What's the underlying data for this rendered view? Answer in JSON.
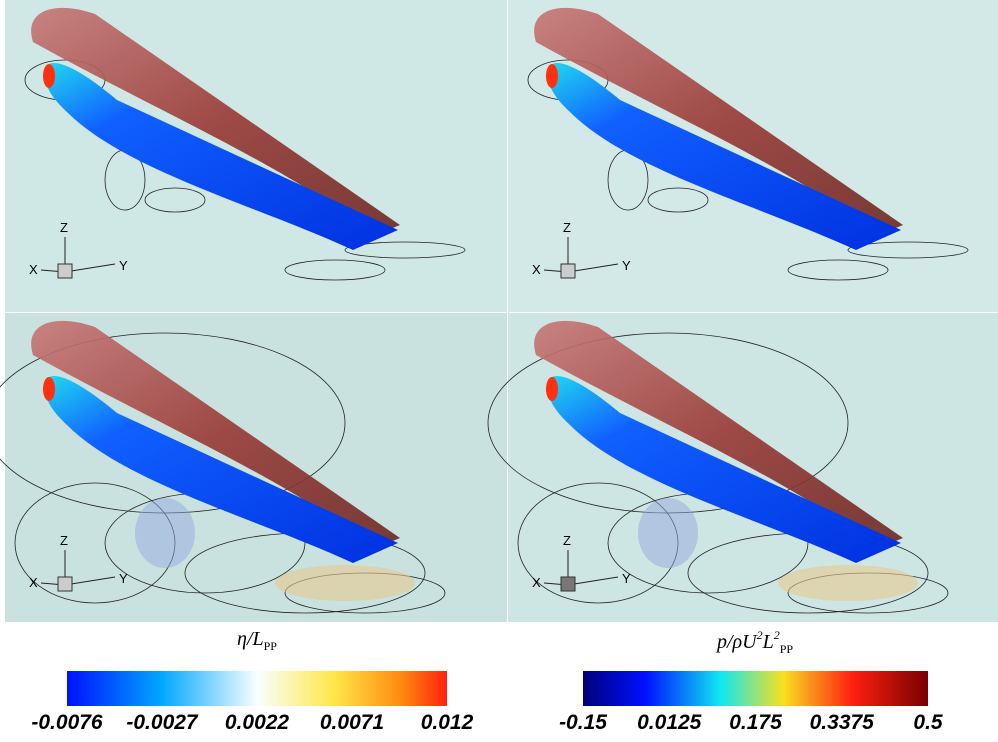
{
  "panels": [
    {
      "axes": {
        "x": "X",
        "y": "Y",
        "z": "Z"
      }
    },
    {
      "axes": {
        "x": "X",
        "y": "Y",
        "z": "Z"
      }
    },
    {
      "axes": {
        "x": "X",
        "y": "Y",
        "z": "Z"
      }
    },
    {
      "axes": {
        "x": "X",
        "y": "Y",
        "z": "Z"
      }
    }
  ],
  "colorbars": [
    {
      "label": [
        "η/L",
        "PP"
      ],
      "ticks": [
        "-0.0076",
        "-0.0027",
        "0.0022",
        "0.0071",
        "0.012"
      ]
    },
    {
      "label": [
        "p/ρU",
        "2",
        "L",
        "2",
        "PP"
      ],
      "ticks": [
        "-0.15",
        "0.0125",
        "0.175",
        "0.3375",
        "0.5"
      ]
    }
  ]
}
